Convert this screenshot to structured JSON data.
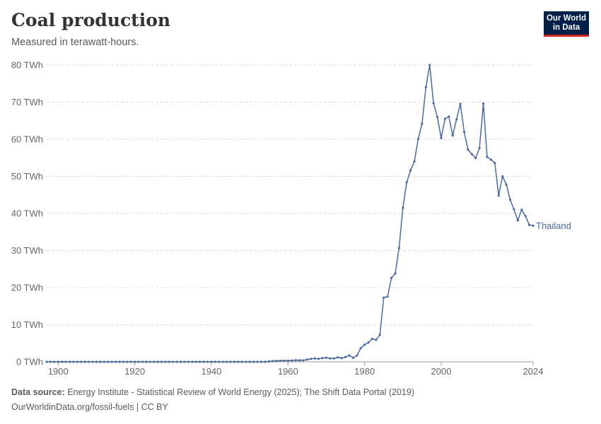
{
  "header": {
    "title": "Coal production",
    "subtitle": "Measured in terawatt-hours.",
    "logo_line1": "Our World",
    "logo_line2": "in Data"
  },
  "footer": {
    "source_label": "Data source:",
    "source_text": "Energy Institute - Statistical Review of World Energy (2025); The Shift Data Portal (2019)",
    "url_license": "OurWorldinData.org/fossil-fuels | CC BY"
  },
  "colors": {
    "series": "#4c6a9c",
    "grid": "#dddddd",
    "axis_text": "#666666"
  },
  "chart_data": {
    "type": "line",
    "title": "Coal production",
    "subtitle": "Measured in terawatt-hours.",
    "unit": "TWh",
    "xlim": [
      1897,
      2024
    ],
    "ylim": [
      0,
      80
    ],
    "x_ticks": [
      1900,
      1920,
      1940,
      1960,
      1980,
      2000,
      2024
    ],
    "y_ticks": [
      0,
      10,
      20,
      30,
      40,
      50,
      60,
      70,
      80
    ],
    "y_tick_labels": [
      "0 TWh",
      "10 TWh",
      "20 TWh",
      "30 TWh",
      "40 TWh",
      "50 TWh",
      "60 TWh",
      "70 TWh",
      "80 TWh"
    ],
    "grid": true,
    "legend_placement": "end-of-line label",
    "series": [
      {
        "name": "Thailand",
        "x": [
          1897,
          1898,
          1899,
          1900,
          1901,
          1902,
          1903,
          1904,
          1905,
          1906,
          1907,
          1908,
          1909,
          1910,
          1911,
          1912,
          1913,
          1914,
          1915,
          1916,
          1917,
          1918,
          1919,
          1920,
          1921,
          1922,
          1923,
          1924,
          1925,
          1926,
          1927,
          1928,
          1929,
          1930,
          1931,
          1932,
          1933,
          1934,
          1935,
          1936,
          1937,
          1938,
          1939,
          1940,
          1941,
          1942,
          1943,
          1944,
          1945,
          1946,
          1947,
          1948,
          1949,
          1950,
          1951,
          1952,
          1953,
          1954,
          1955,
          1956,
          1957,
          1958,
          1959,
          1960,
          1961,
          1962,
          1963,
          1964,
          1965,
          1966,
          1967,
          1968,
          1969,
          1970,
          1971,
          1972,
          1973,
          1974,
          1975,
          1976,
          1977,
          1978,
          1979,
          1980,
          1981,
          1982,
          1983,
          1984,
          1985,
          1986,
          1987,
          1988,
          1989,
          1990,
          1991,
          1992,
          1993,
          1994,
          1995,
          1996,
          1997,
          1998,
          1999,
          2000,
          2001,
          2002,
          2003,
          2004,
          2005,
          2006,
          2007,
          2008,
          2009,
          2010,
          2011,
          2012,
          2013,
          2014,
          2015,
          2016,
          2017,
          2018,
          2019,
          2020,
          2021,
          2022,
          2023,
          2024
        ],
        "y": [
          0,
          0,
          0,
          0,
          0,
          0,
          0,
          0,
          0,
          0,
          0,
          0,
          0,
          0,
          0,
          0,
          0,
          0,
          0,
          0,
          0,
          0,
          0,
          0,
          0,
          0,
          0,
          0,
          0,
          0,
          0,
          0,
          0,
          0,
          0,
          0,
          0,
          0,
          0,
          0,
          0,
          0,
          0,
          0,
          0,
          0,
          0,
          0,
          0,
          0,
          0,
          0,
          0,
          0,
          0,
          0,
          0,
          0,
          0.1,
          0.2,
          0.25,
          0.3,
          0.3,
          0.3,
          0.35,
          0.4,
          0.4,
          0.4,
          0.6,
          0.8,
          0.9,
          0.8,
          1.0,
          1.1,
          0.9,
          0.9,
          1.2,
          1.0,
          1.3,
          1.7,
          1.1,
          1.7,
          3.7,
          4.6,
          5.2,
          6.2,
          5.9,
          7.3,
          17.3,
          17.6,
          22.6,
          23.8,
          30.7,
          41.5,
          48.4,
          51.6,
          54.0,
          60.1,
          64.2,
          74.0,
          80.0,
          69.7,
          66.0,
          60.3,
          65.5,
          66.1,
          61.0,
          65.3,
          69.5,
          62.0,
          57.2,
          56.0,
          54.9,
          57.6,
          69.6,
          55.2,
          54.5,
          53.6,
          44.8,
          50.0,
          47.8,
          43.7,
          41.1,
          38.1,
          41.0,
          39.3,
          36.9,
          36.7
        ]
      }
    ]
  }
}
